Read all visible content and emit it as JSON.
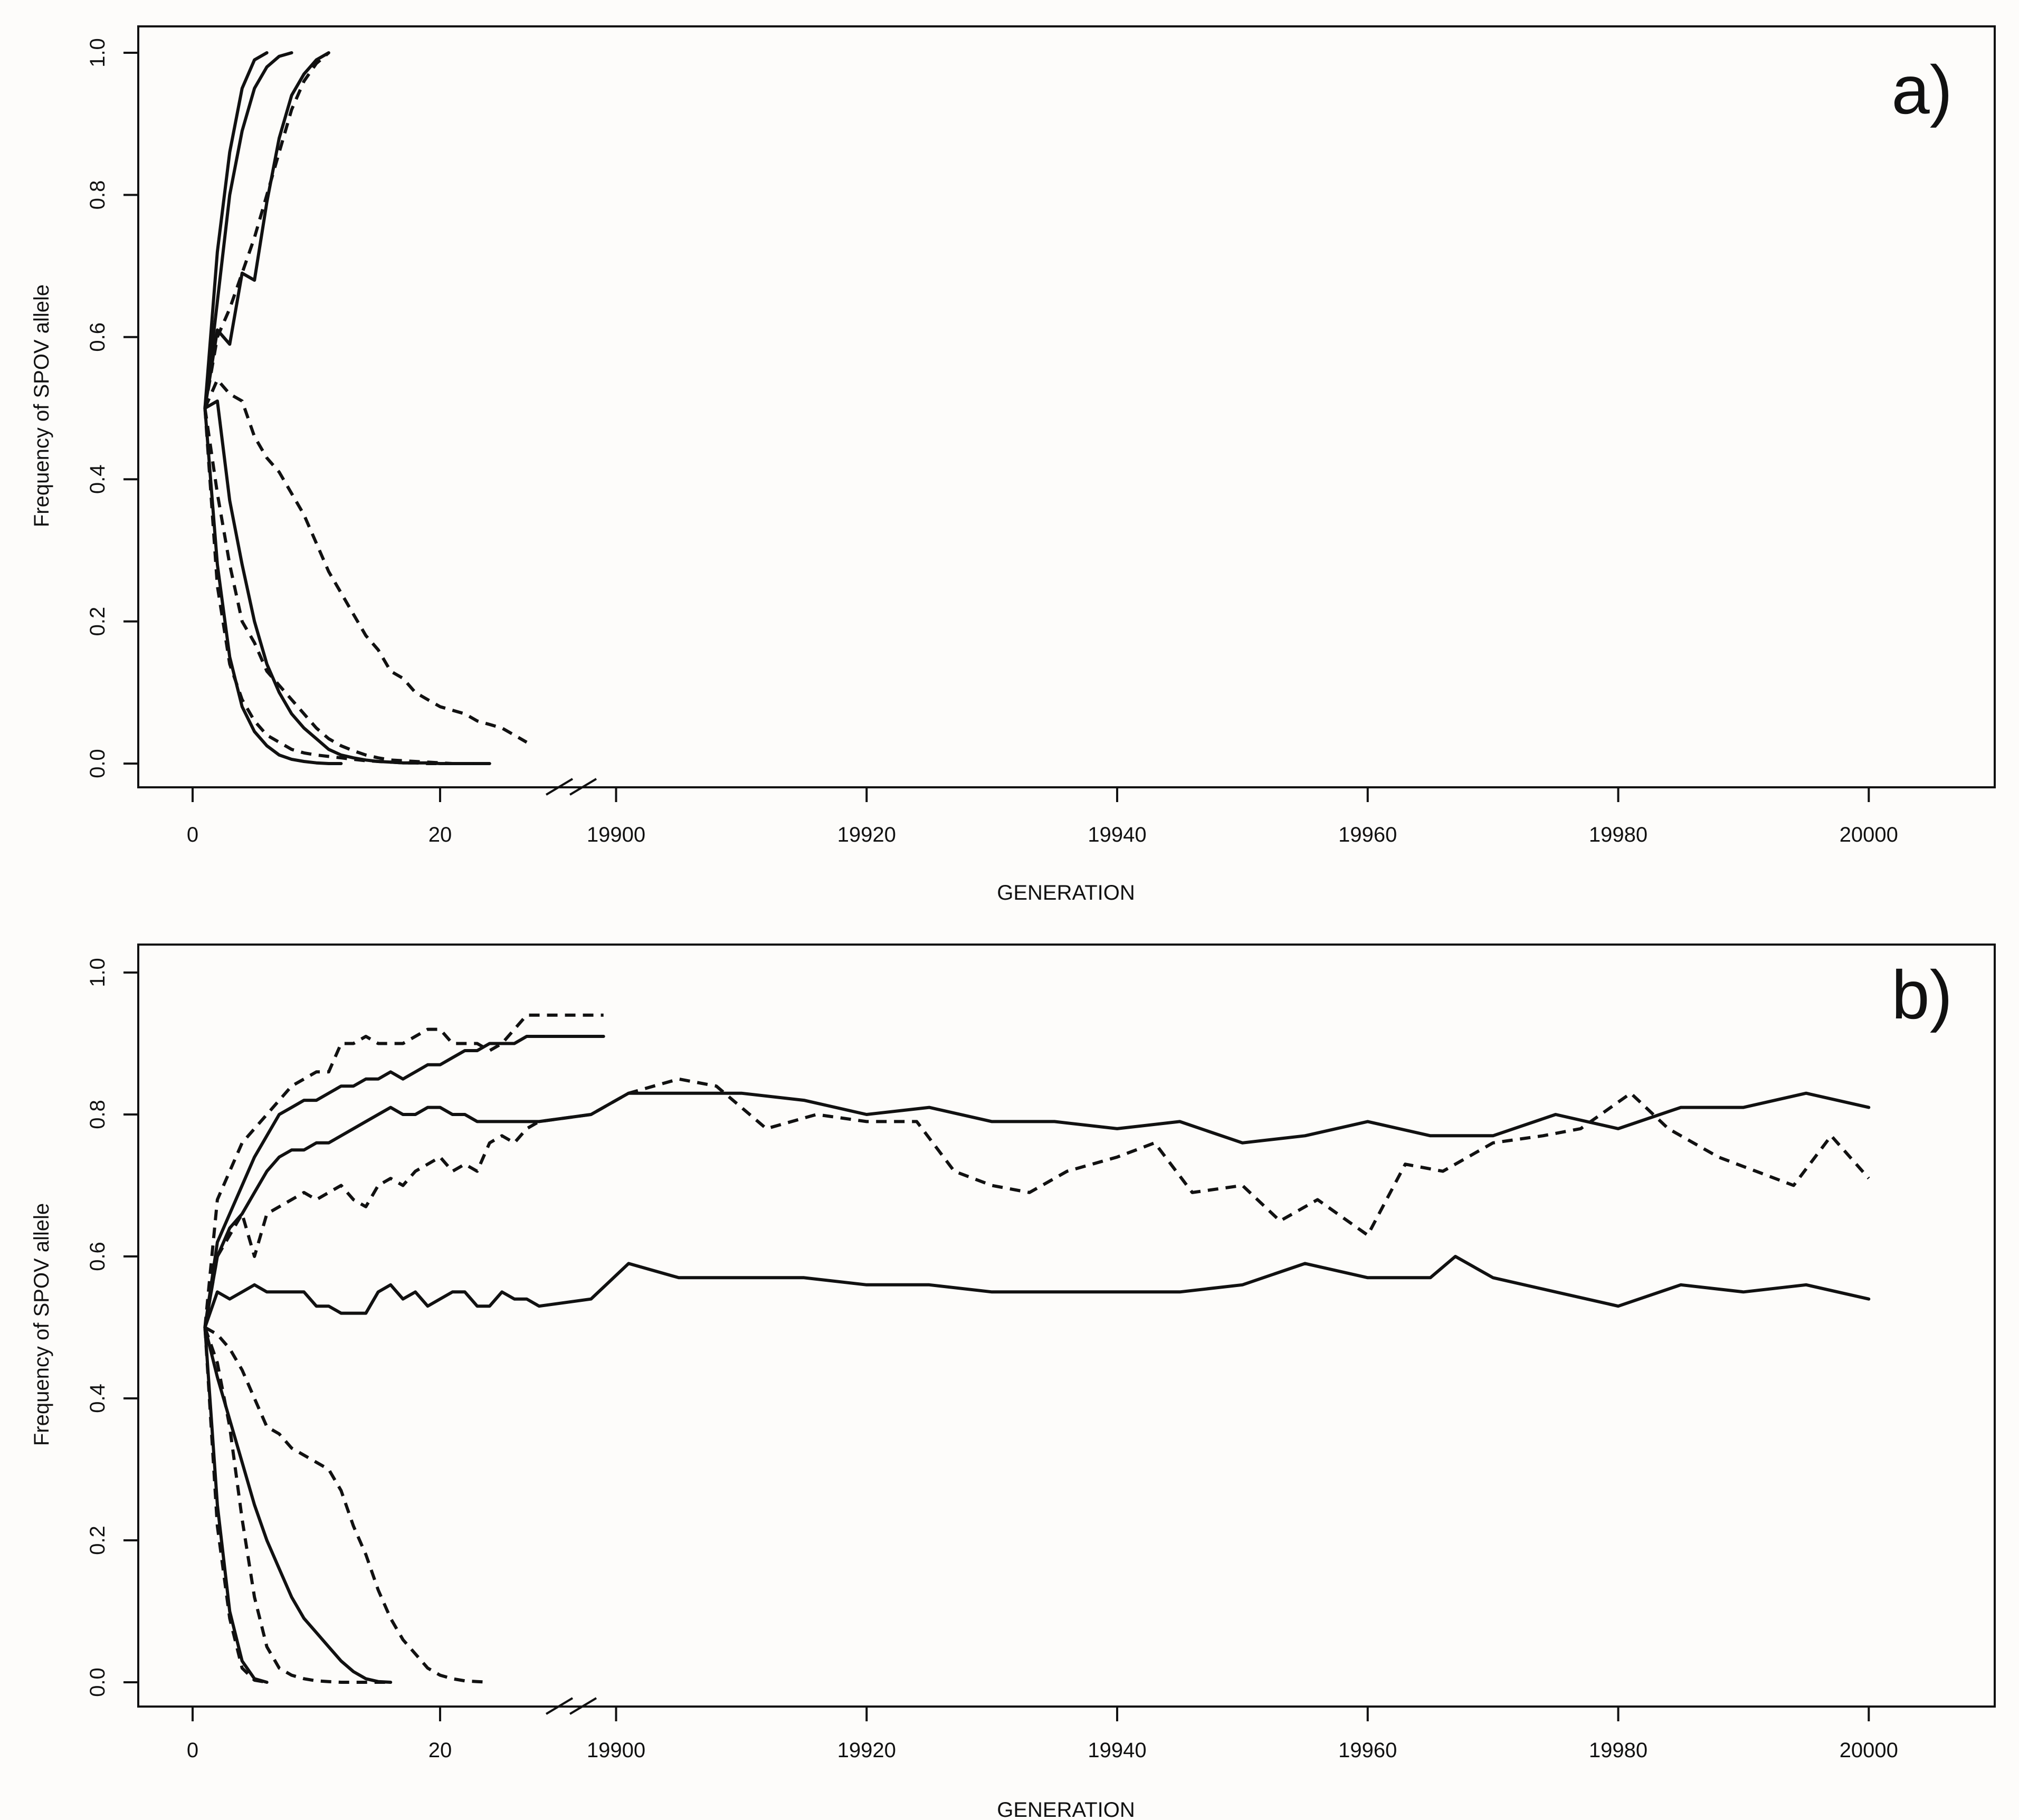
{
  "figure": {
    "panels": [
      "a)",
      "b)"
    ]
  },
  "chart_data": [
    {
      "type": "line",
      "panel_label": "a)",
      "xlabel": "GENERATION",
      "ylabel": "Frequency of SPOV allele",
      "ylim": [
        0,
        1
      ],
      "x_axis_break": true,
      "left_segment": {
        "xlim": [
          0,
          29
        ],
        "tick_values": [
          0,
          20
        ],
        "tick_labels": [
          "0",
          "20"
        ]
      },
      "right_segment": {
        "xlim": [
          19898,
          20005
        ],
        "tick_values": [
          19900,
          19920,
          19940,
          19960,
          19980,
          20000
        ],
        "tick_labels": [
          "19900",
          "19920",
          "19940",
          "19960",
          "19980",
          "20000"
        ]
      },
      "y_ticks": [
        0.0,
        0.2,
        0.4,
        0.6,
        0.8,
        1.0
      ],
      "y_tick_labels": [
        "0.0",
        "0.2",
        "0.4",
        "0.6",
        "0.8",
        "1.0"
      ],
      "grid": false,
      "series": [
        {
          "style": "solid",
          "x": [
            1,
            2,
            3,
            4,
            5,
            6
          ],
          "y": [
            0.5,
            0.72,
            0.86,
            0.95,
            0.99,
            1.0
          ]
        },
        {
          "style": "solid",
          "x": [
            1,
            2,
            3,
            4,
            5,
            6,
            7,
            8
          ],
          "y": [
            0.5,
            0.65,
            0.8,
            0.89,
            0.95,
            0.98,
            0.995,
            1.0
          ]
        },
        {
          "style": "solid",
          "x": [
            1,
            2,
            3,
            4,
            5,
            6,
            7,
            8,
            9,
            10,
            11
          ],
          "y": [
            0.5,
            0.61,
            0.59,
            0.69,
            0.68,
            0.79,
            0.88,
            0.94,
            0.97,
            0.99,
            1.0
          ]
        },
        {
          "style": "dashed",
          "x": [
            1,
            2,
            3,
            4,
            5,
            6,
            7,
            8,
            9,
            10,
            11
          ],
          "y": [
            0.5,
            0.6,
            0.64,
            0.69,
            0.74,
            0.8,
            0.86,
            0.92,
            0.96,
            0.985,
            1.0
          ]
        },
        {
          "style": "solid",
          "x": [
            1,
            2,
            3,
            4,
            5,
            6,
            7,
            8,
            9,
            10,
            11,
            12,
            13,
            14,
            15,
            16,
            17,
            18,
            19,
            20,
            21,
            22,
            23,
            24
          ],
          "y": [
            0.5,
            0.51,
            0.37,
            0.28,
            0.2,
            0.14,
            0.1,
            0.07,
            0.05,
            0.035,
            0.02,
            0.012,
            0.008,
            0.005,
            0.003,
            0.002,
            0.001,
            0.001,
            0.001,
            0.0,
            0.0,
            0.0,
            0.0,
            0.0
          ]
        },
        {
          "style": "solid",
          "x": [
            1,
            2,
            3,
            4,
            5,
            6,
            7,
            8,
            9,
            10,
            11,
            12
          ],
          "y": [
            0.5,
            0.28,
            0.15,
            0.08,
            0.045,
            0.025,
            0.012,
            0.006,
            0.003,
            0.001,
            0.0,
            0.0
          ]
        },
        {
          "style": "dashed",
          "x": [
            1,
            2,
            3,
            4,
            5,
            6,
            7,
            8,
            9,
            10,
            11,
            12,
            13,
            14,
            15,
            16,
            17,
            18,
            19,
            20
          ],
          "y": [
            0.5,
            0.25,
            0.14,
            0.09,
            0.06,
            0.04,
            0.03,
            0.02,
            0.015,
            0.012,
            0.01,
            0.008,
            0.006,
            0.004,
            0.003,
            0.002,
            0.001,
            0.001,
            0.0,
            0.0
          ]
        },
        {
          "style": "dashed",
          "x": [
            1,
            2,
            3,
            4,
            5,
            6,
            7,
            8,
            9,
            10,
            11,
            12,
            13,
            14,
            15,
            16,
            17,
            18,
            19,
            20,
            21,
            22,
            23
          ],
          "y": [
            0.5,
            0.38,
            0.28,
            0.2,
            0.17,
            0.13,
            0.11,
            0.09,
            0.07,
            0.05,
            0.035,
            0.025,
            0.018,
            0.012,
            0.008,
            0.005,
            0.004,
            0.003,
            0.002,
            0.001,
            0.0,
            0.0,
            0.0
          ]
        },
        {
          "style": "dashed",
          "x": [
            1,
            2,
            3,
            4,
            5,
            6,
            7,
            8,
            9,
            10,
            11,
            12,
            13,
            14,
            15,
            16,
            17,
            18,
            19,
            20,
            21,
            22,
            23,
            24,
            25,
            26,
            27
          ],
          "y": [
            0.5,
            0.54,
            0.52,
            0.51,
            0.46,
            0.43,
            0.41,
            0.38,
            0.35,
            0.31,
            0.27,
            0.24,
            0.21,
            0.18,
            0.16,
            0.13,
            0.12,
            0.1,
            0.09,
            0.08,
            0.075,
            0.07,
            0.06,
            0.055,
            0.05,
            0.04,
            0.03
          ]
        }
      ]
    },
    {
      "type": "line",
      "panel_label": "b)",
      "xlabel": "GENERATION",
      "ylabel": "Frequency of SPOV allele",
      "ylim": [
        0,
        1
      ],
      "x_axis_break": true,
      "left_segment": {
        "xlim": [
          0,
          29
        ],
        "tick_values": [
          0,
          20
        ],
        "tick_labels": [
          "0",
          "20"
        ]
      },
      "right_segment": {
        "xlim": [
          19898,
          20005
        ],
        "tick_values": [
          19900,
          19920,
          19940,
          19960,
          19980,
          20000
        ],
        "tick_labels": [
          "19900",
          "19920",
          "19940",
          "19960",
          "19980",
          "20000"
        ]
      },
      "y_ticks": [
        0.0,
        0.2,
        0.4,
        0.6,
        0.8,
        1.0
      ],
      "y_tick_labels": [
        "0.0",
        "0.2",
        "0.4",
        "0.6",
        "0.8",
        "1.0"
      ],
      "grid": false,
      "series": [
        {
          "style": "solid",
          "x": [
            1,
            2,
            3,
            4,
            5,
            6,
            7,
            8,
            9,
            10,
            11,
            12,
            13,
            14,
            15,
            16,
            17,
            18,
            19,
            20,
            21,
            22,
            23,
            24,
            25,
            26,
            27,
            28,
            19899
          ],
          "y": [
            0.5,
            0.62,
            0.66,
            0.7,
            0.74,
            0.77,
            0.8,
            0.81,
            0.82,
            0.82,
            0.83,
            0.84,
            0.84,
            0.85,
            0.85,
            0.86,
            0.85,
            0.86,
            0.87,
            0.87,
            0.88,
            0.89,
            0.89,
            0.9,
            0.9,
            0.9,
            0.91,
            0.91,
            0.91
          ]
        },
        {
          "style": "dashed",
          "x": [
            1,
            2,
            3,
            4,
            5,
            6,
            7,
            8,
            9,
            10,
            11,
            12,
            13,
            14,
            15,
            16,
            17,
            18,
            19,
            20,
            21,
            22,
            23,
            24,
            25,
            26,
            27,
            28,
            19899
          ],
          "y": [
            0.5,
            0.68,
            0.72,
            0.76,
            0.78,
            0.8,
            0.82,
            0.84,
            0.85,
            0.86,
            0.86,
            0.9,
            0.9,
            0.91,
            0.9,
            0.9,
            0.9,
            0.91,
            0.92,
            0.92,
            0.9,
            0.9,
            0.9,
            0.89,
            0.9,
            0.92,
            0.94,
            0.94,
            0.94
          ]
        },
        {
          "style": "solid",
          "x": [
            1,
            2,
            3,
            4,
            5,
            6,
            7,
            8,
            9,
            10,
            11,
            12,
            13,
            14,
            15,
            16,
            17,
            18,
            19,
            20,
            21,
            22,
            23,
            24,
            25,
            26,
            27,
            28,
            19898,
            19901,
            19905,
            19910,
            19915,
            19920,
            19925,
            19930,
            19935,
            19940,
            19945,
            19950,
            19955,
            19960,
            19965,
            19970,
            19975,
            19980,
            19985,
            19990,
            19995,
            20000
          ],
          "y": [
            0.5,
            0.6,
            0.64,
            0.66,
            0.69,
            0.72,
            0.74,
            0.75,
            0.75,
            0.76,
            0.76,
            0.77,
            0.78,
            0.79,
            0.8,
            0.81,
            0.8,
            0.8,
            0.81,
            0.81,
            0.8,
            0.8,
            0.79,
            0.79,
            0.79,
            0.79,
            0.79,
            0.79,
            0.8,
            0.83,
            0.83,
            0.83,
            0.82,
            0.8,
            0.81,
            0.79,
            0.79,
            0.78,
            0.79,
            0.76,
            0.77,
            0.79,
            0.77,
            0.77,
            0.8,
            0.78,
            0.81,
            0.81,
            0.83,
            0.81
          ]
        },
        {
          "style": "dashed",
          "x": [
            1,
            2,
            3,
            4,
            5,
            6,
            7,
            8,
            9,
            10,
            11,
            12,
            13,
            14,
            15,
            16,
            17,
            18,
            19,
            20,
            21,
            22,
            23,
            24,
            25,
            26,
            27,
            28,
            19898,
            19901,
            19905,
            19908,
            19912,
            19916,
            19920,
            19924,
            19927,
            19930,
            19933,
            19936,
            19940,
            19943,
            19946,
            19950,
            19953,
            19956,
            19960,
            19963,
            19966,
            19970,
            19974,
            19977,
            19981,
            19984,
            19988,
            19991,
            19994,
            19997,
            20000
          ],
          "y": [
            0.5,
            0.6,
            0.63,
            0.66,
            0.6,
            0.66,
            0.67,
            0.68,
            0.69,
            0.68,
            0.69,
            0.7,
            0.68,
            0.67,
            0.7,
            0.71,
            0.7,
            0.72,
            0.73,
            0.74,
            0.72,
            0.73,
            0.72,
            0.76,
            0.77,
            0.76,
            0.78,
            0.79,
            0.8,
            0.83,
            0.85,
            0.84,
            0.78,
            0.8,
            0.79,
            0.79,
            0.72,
            0.7,
            0.69,
            0.72,
            0.74,
            0.76,
            0.69,
            0.7,
            0.65,
            0.68,
            0.63,
            0.73,
            0.72,
            0.76,
            0.77,
            0.78,
            0.83,
            0.78,
            0.74,
            0.72,
            0.7,
            0.77,
            0.71
          ]
        },
        {
          "style": "solid",
          "x": [
            1,
            2,
            3,
            4,
            5,
            6,
            7,
            8,
            9,
            10,
            11,
            12,
            13,
            14,
            15,
            16,
            17,
            18,
            19,
            20,
            21,
            22,
            23,
            24,
            25,
            26,
            27,
            28,
            19898,
            19901,
            19905,
            19910,
            19915,
            19920,
            19925,
            19930,
            19935,
            19940,
            19945,
            19950,
            19955,
            19960,
            19965,
            19967,
            19970,
            19975,
            19980,
            19985,
            19990,
            19995,
            20000
          ],
          "y": [
            0.5,
            0.55,
            0.54,
            0.55,
            0.56,
            0.55,
            0.55,
            0.55,
            0.55,
            0.53,
            0.53,
            0.52,
            0.52,
            0.52,
            0.55,
            0.56,
            0.54,
            0.55,
            0.53,
            0.54,
            0.55,
            0.55,
            0.53,
            0.53,
            0.55,
            0.54,
            0.54,
            0.53,
            0.54,
            0.59,
            0.57,
            0.57,
            0.57,
            0.56,
            0.56,
            0.55,
            0.55,
            0.55,
            0.55,
            0.56,
            0.59,
            0.57,
            0.57,
            0.6,
            0.57,
            0.55,
            0.53,
            0.56,
            0.55,
            0.56,
            0.54
          ]
        },
        {
          "style": "solid",
          "x": [
            1,
            2,
            3,
            4,
            5,
            6
          ],
          "y": [
            0.5,
            0.25,
            0.1,
            0.03,
            0.005,
            0.0
          ]
        },
        {
          "style": "dashed",
          "x": [
            1,
            2,
            3,
            4,
            5,
            6
          ],
          "y": [
            0.5,
            0.22,
            0.09,
            0.02,
            0.003,
            0.0
          ]
        },
        {
          "style": "solid",
          "x": [
            1,
            2,
            3,
            4,
            5,
            6,
            7,
            8,
            9,
            10,
            11,
            12,
            13,
            14,
            15,
            16
          ],
          "y": [
            0.5,
            0.43,
            0.37,
            0.31,
            0.25,
            0.2,
            0.16,
            0.12,
            0.09,
            0.07,
            0.05,
            0.03,
            0.015,
            0.005,
            0.001,
            0.0
          ]
        },
        {
          "style": "dashed",
          "x": [
            1,
            2,
            3,
            4,
            5,
            6,
            7,
            8,
            9,
            10,
            11,
            12,
            13,
            14,
            15,
            16
          ],
          "y": [
            0.5,
            0.45,
            0.36,
            0.23,
            0.12,
            0.05,
            0.02,
            0.01,
            0.005,
            0.002,
            0.001,
            0.0,
            0.0,
            0.0,
            0.0,
            0.0
          ]
        },
        {
          "style": "dashed",
          "x": [
            1,
            2,
            3,
            4,
            5,
            6,
            7,
            8,
            9,
            10,
            11,
            12,
            13,
            14,
            15,
            16,
            17,
            18,
            19,
            20,
            21,
            22,
            23,
            24
          ],
          "y": [
            0.5,
            0.49,
            0.47,
            0.44,
            0.4,
            0.36,
            0.35,
            0.33,
            0.32,
            0.31,
            0.3,
            0.27,
            0.22,
            0.18,
            0.13,
            0.09,
            0.06,
            0.04,
            0.02,
            0.01,
            0.005,
            0.002,
            0.001,
            0.0
          ]
        }
      ]
    }
  ]
}
